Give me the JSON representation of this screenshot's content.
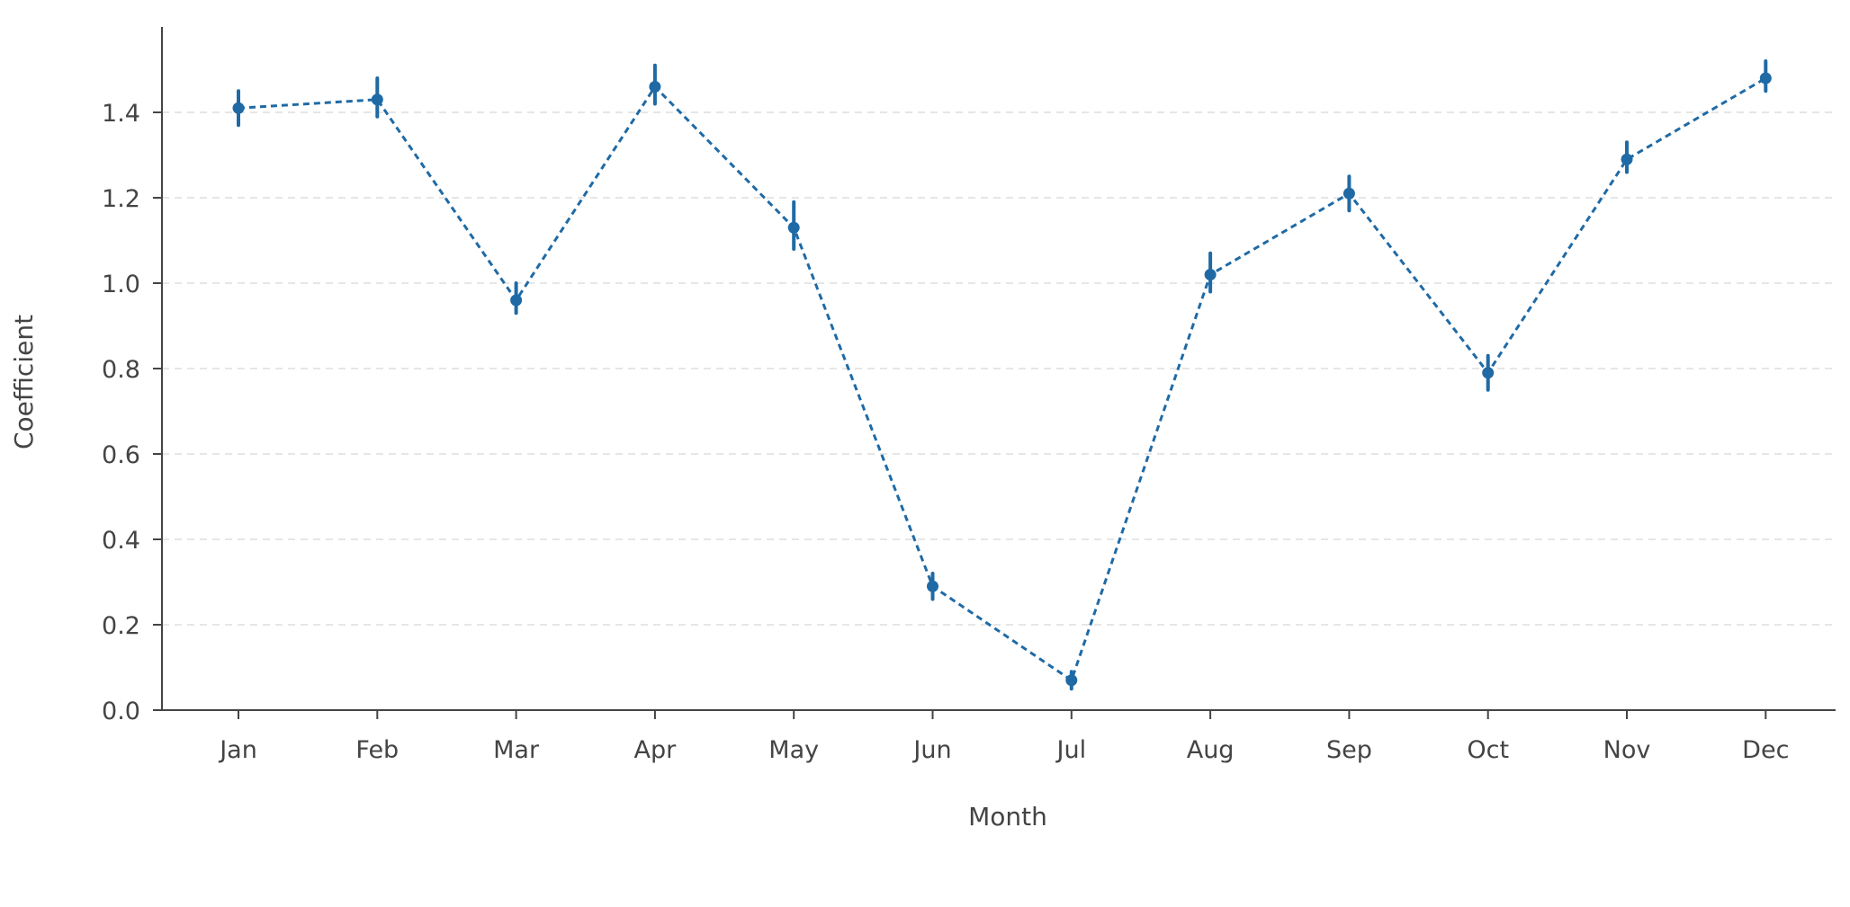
{
  "chart_data": {
    "type": "line",
    "xlabel": "Month",
    "ylabel": "Coefficient",
    "categories": [
      "Jan",
      "Feb",
      "Mar",
      "Apr",
      "May",
      "Jun",
      "Jul",
      "Aug",
      "Sep",
      "Oct",
      "Nov",
      "Dec"
    ],
    "series": [
      {
        "values": [
          1.41,
          1.43,
          0.96,
          1.46,
          1.13,
          0.29,
          0.07,
          1.02,
          1.21,
          0.79,
          1.29,
          1.48
        ],
        "err_low": [
          1.37,
          1.39,
          0.93,
          1.42,
          1.08,
          0.26,
          0.05,
          0.98,
          1.17,
          0.75,
          1.26,
          1.45
        ],
        "err_high": [
          1.45,
          1.48,
          1.0,
          1.51,
          1.19,
          0.32,
          0.09,
          1.07,
          1.25,
          0.83,
          1.33,
          1.52
        ],
        "line_style": "dashed"
      }
    ],
    "ylim": [
      0,
      1.6
    ],
    "yticks": [
      "0.0",
      "0.2",
      "0.4",
      "0.6",
      "0.8",
      "1.0",
      "1.2",
      "1.4"
    ],
    "grid": "horizontal-dashed",
    "colors": {
      "series": "#1f6aa5",
      "axis": "#444444",
      "grid": "#dddddd"
    }
  }
}
